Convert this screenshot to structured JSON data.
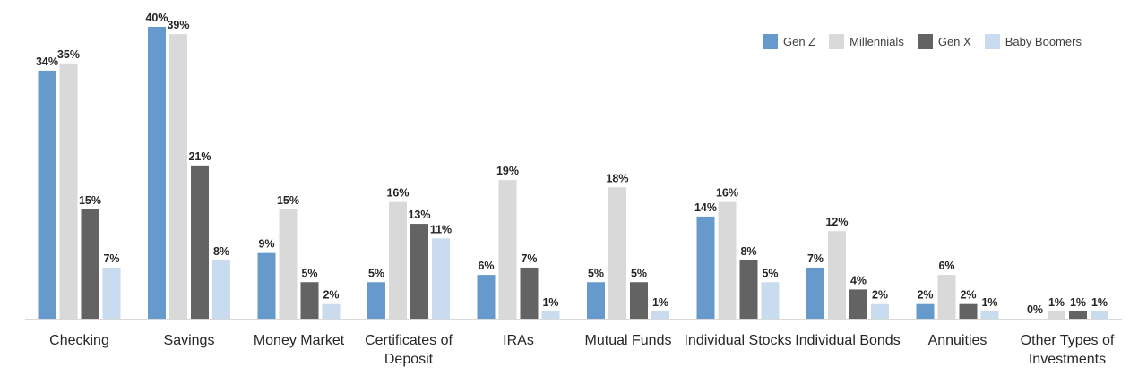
{
  "chart_data": {
    "type": "bar",
    "categories": [
      [
        "Checking"
      ],
      [
        "Savings"
      ],
      [
        "Money Market"
      ],
      [
        "Certificates of",
        "Deposit"
      ],
      [
        "IRAs"
      ],
      [
        "Mutual Funds"
      ],
      [
        "Individual Stocks"
      ],
      [
        "Individual Bonds"
      ],
      [
        "Annuities"
      ],
      [
        "Other Types of",
        "Investments"
      ]
    ],
    "series": [
      {
        "name": "Gen Z",
        "color": "#6699CC",
        "values": [
          34,
          40,
          9,
          5,
          6,
          5,
          14,
          7,
          2,
          0
        ]
      },
      {
        "name": "Millennials",
        "color": "#D9D9D9",
        "values": [
          35,
          39,
          15,
          16,
          19,
          18,
          16,
          12,
          6,
          1
        ]
      },
      {
        "name": "Gen X",
        "color": "#636363",
        "values": [
          15,
          21,
          5,
          13,
          7,
          5,
          8,
          4,
          2,
          1
        ]
      },
      {
        "name": "Baby Boomers",
        "color": "#C9DBEE",
        "values": [
          7,
          8,
          2,
          11,
          1,
          1,
          5,
          2,
          1,
          1
        ]
      }
    ],
    "value_suffix": "%",
    "ylim": [
      0,
      40
    ],
    "grid": false,
    "legend_position": "top-right"
  }
}
